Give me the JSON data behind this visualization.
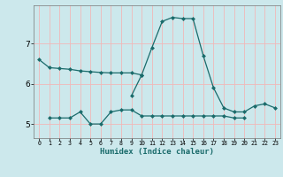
{
  "xlabel": "Humidex (Indice chaleur)",
  "bg_color": "#cce8ec",
  "line_color": "#1a6b6b",
  "grid_color": "#f0b8b8",
  "x_values": [
    0,
    1,
    2,
    3,
    4,
    5,
    6,
    7,
    8,
    9,
    10,
    11,
    12,
    13,
    14,
    15,
    16,
    17,
    18,
    19,
    20,
    21,
    22,
    23
  ],
  "s1_x": [
    0,
    1,
    2,
    3,
    4,
    5,
    6,
    7,
    8,
    9,
    10
  ],
  "s1_y": [
    6.6,
    6.4,
    6.38,
    6.36,
    6.32,
    6.3,
    6.28,
    6.27,
    6.27,
    6.27,
    6.22
  ],
  "s2_x": [
    1,
    2,
    3,
    4,
    5,
    6,
    7,
    8,
    9,
    10,
    11,
    12,
    13,
    14,
    15,
    16,
    17,
    18,
    19,
    20
  ],
  "s2_y": [
    5.15,
    5.15,
    5.15,
    5.3,
    5.0,
    5.0,
    5.3,
    5.35,
    5.35,
    5.2,
    5.2,
    5.2,
    5.2,
    5.2,
    5.2,
    5.2,
    5.2,
    5.2,
    5.15,
    5.15
  ],
  "sm_x": [
    9,
    10,
    11,
    12,
    13,
    14,
    15,
    16,
    17,
    18,
    19,
    20,
    21,
    22,
    23
  ],
  "sm_y": [
    5.7,
    6.22,
    6.9,
    7.55,
    7.65,
    7.62,
    7.62,
    6.7,
    5.9,
    5.4,
    5.3,
    5.3,
    5.45,
    5.5,
    5.4
  ],
  "ylim": [
    4.65,
    7.95
  ],
  "yticks": [
    5,
    6,
    7
  ],
  "xlim": [
    -0.5,
    23.5
  ],
  "marker_size": 2.5,
  "linewidth": 0.9
}
